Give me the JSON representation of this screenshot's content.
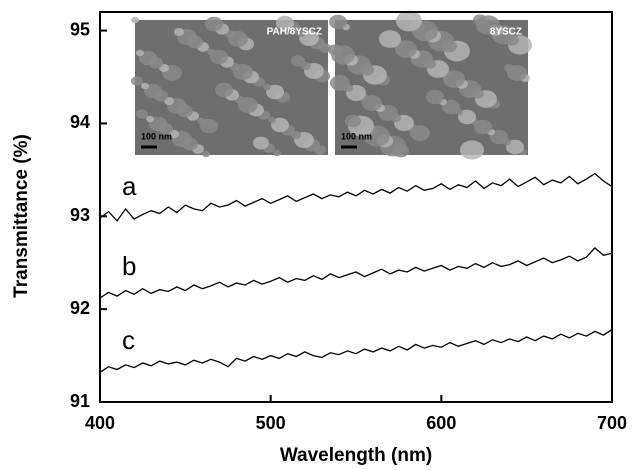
{
  "chart_data": {
    "type": "line",
    "xlabel": "Wavelength (nm)",
    "ylabel": "Transmittance (%)",
    "xlim": [
      400,
      700
    ],
    "ylim": [
      91,
      95.2
    ],
    "xticks": [
      400,
      500,
      600,
      700
    ],
    "yticks": [
      91,
      92,
      93,
      94,
      95
    ],
    "insets": [
      {
        "label": "PAH/8YSCZ",
        "scale": "100 nm"
      },
      {
        "label": "8YSCZ",
        "scale": "100 nm"
      }
    ],
    "x": [
      400,
      405,
      410,
      415,
      420,
      425,
      430,
      435,
      440,
      445,
      450,
      455,
      460,
      465,
      470,
      475,
      480,
      485,
      490,
      495,
      500,
      505,
      510,
      515,
      520,
      525,
      530,
      535,
      540,
      545,
      550,
      555,
      560,
      565,
      570,
      575,
      580,
      585,
      590,
      595,
      600,
      605,
      610,
      615,
      620,
      625,
      630,
      635,
      640,
      645,
      650,
      655,
      660,
      665,
      670,
      675,
      680,
      685,
      690,
      695,
      700
    ],
    "series": [
      {
        "name": "a",
        "color": "#000000",
        "values": [
          92.98,
          93.05,
          92.95,
          93.08,
          92.97,
          93.02,
          93.06,
          93.03,
          93.1,
          93.04,
          93.12,
          93.08,
          93.06,
          93.14,
          93.1,
          93.12,
          93.17,
          93.11,
          93.15,
          93.19,
          93.14,
          93.18,
          93.22,
          93.16,
          93.2,
          93.24,
          93.19,
          93.23,
          93.21,
          93.26,
          93.22,
          93.28,
          93.24,
          93.29,
          93.25,
          93.31,
          93.27,
          93.33,
          93.28,
          93.3,
          93.35,
          93.29,
          93.34,
          93.31,
          93.38,
          93.3,
          93.36,
          93.33,
          93.4,
          93.32,
          93.37,
          93.42,
          93.34,
          93.39,
          93.36,
          93.43,
          93.35,
          93.4,
          93.46,
          93.38,
          93.32
        ]
      },
      {
        "name": "b",
        "color": "#000000",
        "values": [
          92.12,
          92.18,
          92.14,
          92.2,
          92.16,
          92.22,
          92.17,
          92.21,
          92.19,
          92.24,
          92.2,
          92.26,
          92.22,
          92.25,
          92.29,
          92.24,
          92.28,
          92.26,
          92.31,
          92.27,
          92.3,
          92.34,
          92.29,
          92.33,
          92.31,
          92.36,
          92.32,
          92.38,
          92.34,
          92.37,
          92.4,
          92.35,
          92.39,
          92.43,
          92.38,
          92.42,
          92.4,
          92.45,
          92.41,
          92.44,
          92.47,
          92.42,
          92.46,
          92.44,
          92.49,
          92.45,
          92.5,
          92.46,
          92.48,
          92.52,
          92.47,
          92.51,
          92.55,
          92.5,
          92.53,
          92.57,
          92.52,
          92.56,
          92.66,
          92.58,
          92.6
        ]
      },
      {
        "name": "c",
        "color": "#000000",
        "values": [
          91.32,
          91.38,
          91.35,
          91.4,
          91.37,
          91.42,
          91.39,
          91.44,
          91.41,
          91.43,
          91.4,
          91.45,
          91.42,
          91.46,
          91.43,
          91.38,
          91.47,
          91.44,
          91.49,
          91.46,
          91.5,
          91.47,
          91.52,
          91.49,
          91.54,
          91.5,
          91.48,
          91.53,
          91.51,
          91.55,
          91.52,
          91.57,
          91.54,
          91.58,
          91.55,
          91.6,
          91.56,
          91.62,
          91.58,
          91.61,
          91.59,
          91.64,
          91.6,
          91.63,
          91.66,
          91.62,
          91.67,
          91.64,
          91.68,
          91.65,
          91.7,
          91.66,
          91.71,
          91.68,
          91.73,
          91.69,
          91.74,
          91.71,
          91.76,
          91.72,
          91.78
        ]
      }
    ]
  }
}
